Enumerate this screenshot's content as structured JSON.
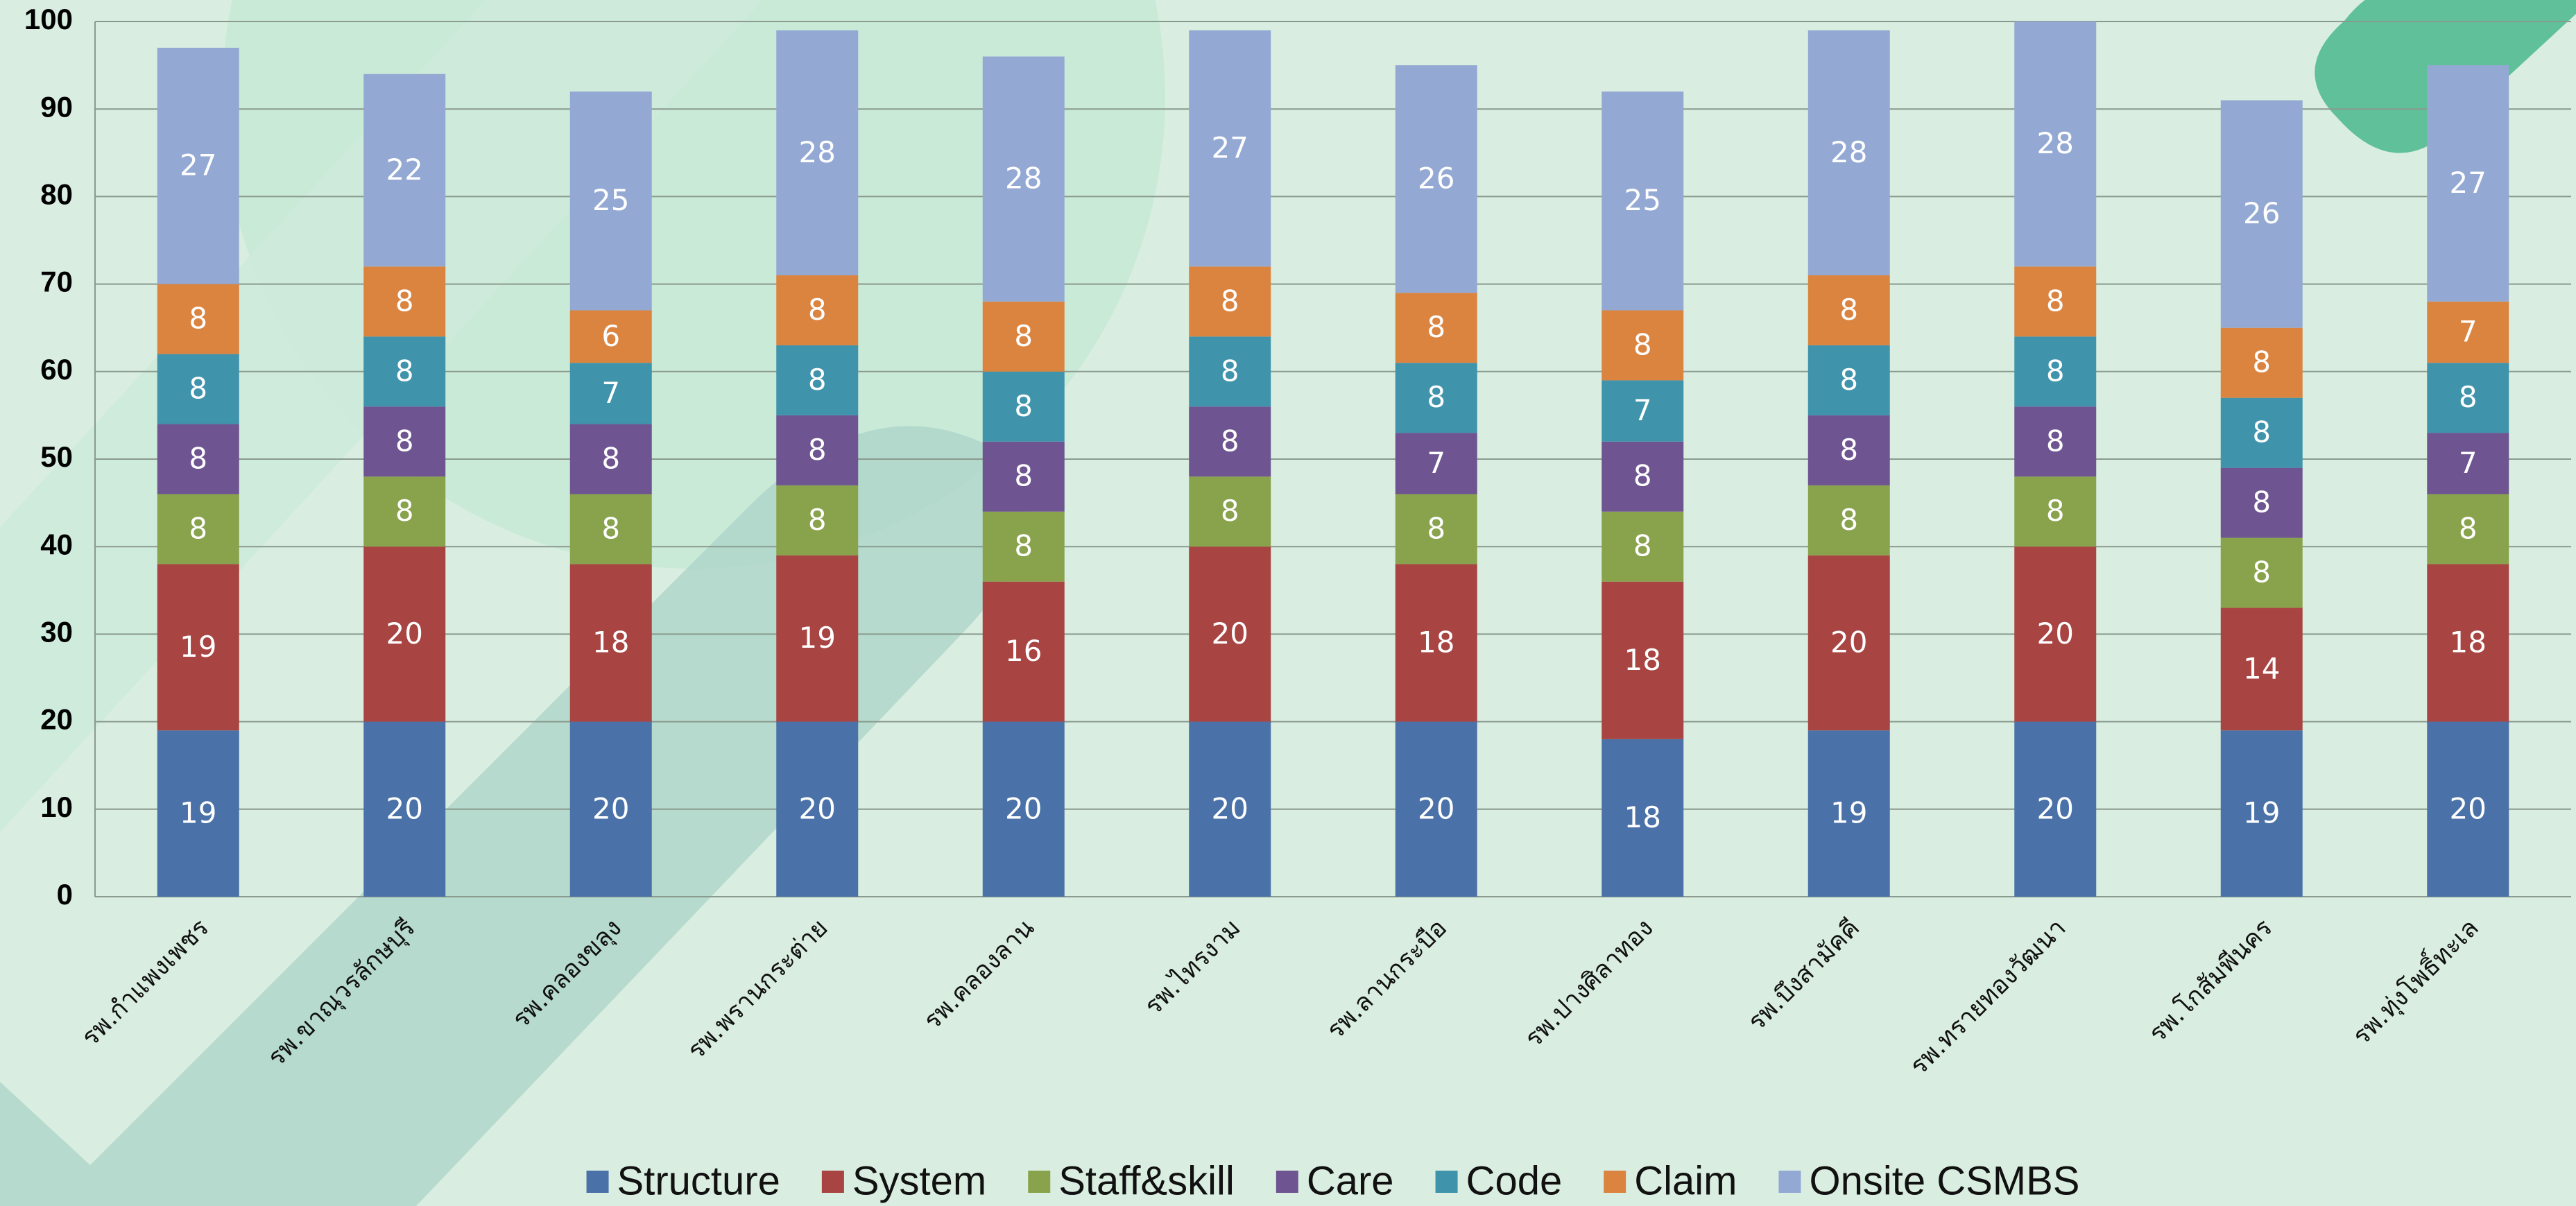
{
  "chart_data": {
    "type": "stacked_bar",
    "categories": [
      "รพ.กำแพงเพชร",
      "รพ.ขาณุวรลักษบุรี",
      "รพ.คลองขลุง",
      "รพ.พรานกระต่าย",
      "รพ.คลองลาน",
      "รพ.ไทรงาม",
      "รพ.ลานกระบือ",
      "รพ.ปางศิลาทอง",
      "รพ.บึงสามัคคี",
      "รพ.ทรายทองวัฒนา",
      "รพ.โกสัมพีนคร",
      "รพ.ทุ่งโพธิ์ทะเล"
    ],
    "series": [
      {
        "name": "Structure",
        "color": "#4a72a8",
        "values": [
          19,
          20,
          20,
          20,
          20,
          20,
          20,
          18,
          19,
          20,
          19,
          20
        ]
      },
      {
        "name": "System",
        "color": "#a84442",
        "values": [
          19,
          20,
          18,
          19,
          16,
          20,
          18,
          18,
          20,
          20,
          14,
          18
        ]
      },
      {
        "name": "Staff&skill",
        "color": "#89a24c",
        "values": [
          8,
          8,
          8,
          8,
          8,
          8,
          8,
          8,
          8,
          8,
          8,
          8
        ]
      },
      {
        "name": "Care",
        "color": "#6e5591",
        "values": [
          8,
          8,
          8,
          8,
          8,
          8,
          7,
          8,
          8,
          8,
          8,
          7
        ]
      },
      {
        "name": "Code",
        "color": "#3f93ab",
        "values": [
          8,
          8,
          7,
          8,
          8,
          8,
          8,
          7,
          8,
          8,
          8,
          8
        ]
      },
      {
        "name": "Claim",
        "color": "#db8440",
        "values": [
          8,
          8,
          6,
          8,
          8,
          8,
          8,
          8,
          8,
          8,
          8,
          7
        ]
      },
      {
        "name": "Onsite CSMBS",
        "color": "#93a9d3",
        "values": [
          27,
          22,
          25,
          28,
          28,
          27,
          26,
          25,
          28,
          28,
          26,
          27
        ]
      }
    ],
    "ylim": [
      0,
      100
    ],
    "yticks": [
      0,
      10,
      20,
      30,
      40,
      50,
      60,
      70,
      80,
      90,
      100
    ],
    "grid": true,
    "legend": "bottom"
  }
}
